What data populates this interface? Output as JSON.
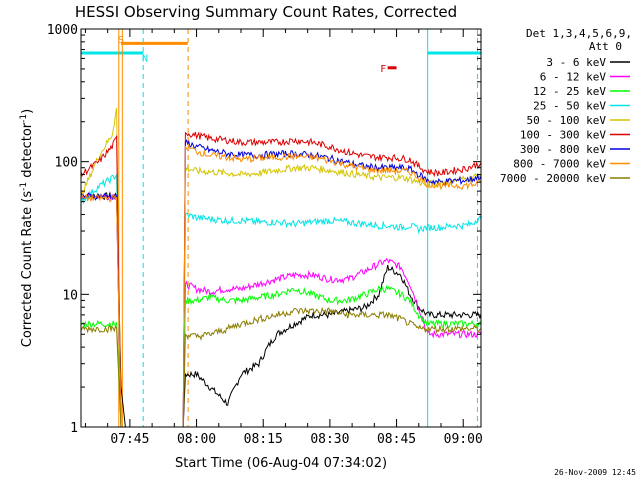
{
  "chart_data": {
    "type": "line",
    "title": "HESSI Observing Summary Count Rates, Corrected",
    "xlabel": "Start Time (06-Aug-04 07:34:02)",
    "ylabel_main": "Corrected Count Rate (s",
    "ylabel_sup1": "-1",
    "ylabel_mid": " detector",
    "ylabel_sup2": "-1",
    "ylabel_end": ")",
    "y_scale": "log",
    "ylim": [
      1,
      1000
    ],
    "xlim_minutes_after_0730": [
      4.0,
      94.0
    ],
    "x_ticks": [
      {
        "label": "07:45",
        "minute": 15
      },
      {
        "label": "08:00",
        "minute": 30
      },
      {
        "label": "08:15",
        "minute": 45
      },
      {
        "label": "08:30",
        "minute": 60
      },
      {
        "label": "08:45",
        "minute": 75
      },
      {
        "label": "09:00",
        "minute": 90
      }
    ],
    "y_ticks": [
      {
        "label": "1",
        "value": 1
      },
      {
        "label": "10",
        "value": 10
      },
      {
        "label": "100",
        "value": 100
      },
      {
        "label": "1000",
        "value": 1000
      }
    ],
    "legend_header": [
      "Det 1,3,4,5,6,9,",
      "Att 0"
    ],
    "legend_placement": "right",
    "series": [
      {
        "name": "3 - 6 keV",
        "color": "#000000",
        "points": [
          [
            4,
            55
          ],
          [
            12,
            55
          ],
          [
            13,
            2
          ],
          [
            14,
            1
          ],
          [
            27,
            1
          ],
          [
            27.5,
            2.5
          ],
          [
            30,
            2.5
          ],
          [
            33,
            2
          ],
          [
            37,
            1.5
          ],
          [
            40,
            2.5
          ],
          [
            44,
            3
          ],
          [
            46,
            4
          ],
          [
            48,
            5
          ],
          [
            52,
            6
          ],
          [
            56,
            7
          ],
          [
            60,
            7
          ],
          [
            64,
            7.5
          ],
          [
            68,
            8
          ],
          [
            71,
            10
          ],
          [
            73,
            16
          ],
          [
            76,
            14
          ],
          [
            78,
            10
          ],
          [
            80,
            8
          ],
          [
            82,
            7
          ],
          [
            85,
            7
          ],
          [
            90,
            7
          ],
          [
            94,
            7
          ]
        ]
      },
      {
        "name": "6 - 12 keV",
        "color": "#ff00ff",
        "points": [
          [
            4,
            55
          ],
          [
            12,
            55
          ],
          [
            13,
            1
          ],
          [
            27,
            1
          ],
          [
            27.5,
            12
          ],
          [
            30,
            11
          ],
          [
            33,
            10.5
          ],
          [
            37,
            11
          ],
          [
            40,
            11
          ],
          [
            44,
            12
          ],
          [
            48,
            13
          ],
          [
            52,
            14
          ],
          [
            56,
            14
          ],
          [
            60,
            13
          ],
          [
            64,
            13
          ],
          [
            68,
            15
          ],
          [
            71,
            17
          ],
          [
            73,
            18
          ],
          [
            76,
            16
          ],
          [
            78,
            12
          ],
          [
            80,
            8
          ],
          [
            82,
            5
          ],
          [
            85,
            5
          ],
          [
            90,
            5
          ],
          [
            94,
            5
          ]
        ]
      },
      {
        "name": "12 - 25 keV",
        "color": "#00ff00",
        "points": [
          [
            4,
            6
          ],
          [
            12,
            6
          ],
          [
            13,
            1
          ],
          [
            27,
            1
          ],
          [
            27.5,
            9
          ],
          [
            30,
            9
          ],
          [
            33,
            9.5
          ],
          [
            37,
            9
          ],
          [
            40,
            9
          ],
          [
            44,
            9.5
          ],
          [
            48,
            10
          ],
          [
            52,
            11
          ],
          [
            56,
            10
          ],
          [
            60,
            9
          ],
          [
            64,
            9
          ],
          [
            68,
            10
          ],
          [
            71,
            11
          ],
          [
            73,
            11
          ],
          [
            76,
            10
          ],
          [
            78,
            9
          ],
          [
            80,
            7
          ],
          [
            82,
            6
          ],
          [
            85,
            6
          ],
          [
            90,
            6
          ],
          [
            94,
            6
          ]
        ]
      },
      {
        "name": "25 - 50 keV",
        "color": "#00e5e5",
        "points": [
          [
            4,
            50
          ],
          [
            8,
            65
          ],
          [
            11,
            75
          ],
          [
            12,
            80
          ],
          [
            13,
            1
          ],
          [
            27,
            1
          ],
          [
            27.5,
            40
          ],
          [
            30,
            38
          ],
          [
            33,
            37
          ],
          [
            37,
            36
          ],
          [
            40,
            36
          ],
          [
            44,
            35
          ],
          [
            48,
            35
          ],
          [
            52,
            34
          ],
          [
            56,
            35
          ],
          [
            60,
            36
          ],
          [
            64,
            35
          ],
          [
            68,
            34
          ],
          [
            71,
            33
          ],
          [
            73,
            33
          ],
          [
            76,
            32
          ],
          [
            78,
            33
          ],
          [
            80,
            31
          ],
          [
            82,
            32
          ],
          [
            85,
            32
          ],
          [
            88,
            33
          ],
          [
            90,
            33
          ],
          [
            92,
            34
          ],
          [
            93.5,
            38
          ],
          [
            94,
            37
          ]
        ]
      },
      {
        "name": "50 - 100 keV",
        "color": "#d4c400",
        "points": [
          [
            4,
            55
          ],
          [
            8,
            110
          ],
          [
            11,
            160
          ],
          [
            12,
            250
          ],
          [
            13,
            1
          ],
          [
            27,
            1
          ],
          [
            27.5,
            90
          ],
          [
            30,
            85
          ],
          [
            33,
            84
          ],
          [
            37,
            82
          ],
          [
            40,
            80
          ],
          [
            44,
            82
          ],
          [
            48,
            86
          ],
          [
            52,
            90
          ],
          [
            56,
            90
          ],
          [
            60,
            86
          ],
          [
            64,
            82
          ],
          [
            68,
            78
          ],
          [
            71,
            76
          ],
          [
            73,
            76
          ],
          [
            76,
            76
          ],
          [
            78,
            74
          ],
          [
            80,
            70
          ],
          [
            82,
            68
          ],
          [
            85,
            70
          ],
          [
            88,
            72
          ],
          [
            90,
            74
          ],
          [
            92,
            76
          ],
          [
            94,
            80
          ]
        ]
      },
      {
        "name": "100 - 300 keV",
        "color": "#dd0000",
        "points": [
          [
            4,
            80
          ],
          [
            8,
            100
          ],
          [
            11,
            130
          ],
          [
            12,
            150
          ],
          [
            13,
            1
          ],
          [
            27,
            1
          ],
          [
            27.5,
            165
          ],
          [
            30,
            158
          ],
          [
            33,
            150
          ],
          [
            37,
            145
          ],
          [
            40,
            140
          ],
          [
            44,
            140
          ],
          [
            48,
            140
          ],
          [
            52,
            145
          ],
          [
            56,
            140
          ],
          [
            60,
            130
          ],
          [
            64,
            118
          ],
          [
            68,
            110
          ],
          [
            71,
            108
          ],
          [
            73,
            108
          ],
          [
            76,
            106
          ],
          [
            78,
            104
          ],
          [
            80,
            92
          ],
          [
            82,
            84
          ],
          [
            85,
            82
          ],
          [
            88,
            86
          ],
          [
            90,
            88
          ],
          [
            92,
            92
          ],
          [
            94,
            98
          ]
        ]
      },
      {
        "name": "300 - 800 keV",
        "color": "#0000dd",
        "points": [
          [
            4,
            55
          ],
          [
            12,
            55
          ],
          [
            13,
            1
          ],
          [
            27,
            1
          ],
          [
            27.5,
            140
          ],
          [
            30,
            130
          ],
          [
            33,
            122
          ],
          [
            37,
            115
          ],
          [
            40,
            112
          ],
          [
            44,
            112
          ],
          [
            48,
            114
          ],
          [
            52,
            115
          ],
          [
            56,
            112
          ],
          [
            60,
            106
          ],
          [
            64,
            98
          ],
          [
            68,
            92
          ],
          [
            71,
            90
          ],
          [
            73,
            90
          ],
          [
            76,
            90
          ],
          [
            78,
            88
          ],
          [
            80,
            80
          ],
          [
            82,
            72
          ],
          [
            85,
            70
          ],
          [
            88,
            72
          ],
          [
            90,
            72
          ],
          [
            92,
            74
          ],
          [
            94,
            78
          ]
        ]
      },
      {
        "name": "800 - 7000 keV",
        "color": "#ff8c00",
        "points": [
          [
            4,
            53
          ],
          [
            12,
            53
          ],
          [
            13,
            1
          ],
          [
            27,
            1
          ],
          [
            27.5,
            130
          ],
          [
            30,
            120
          ],
          [
            33,
            112
          ],
          [
            37,
            108
          ],
          [
            40,
            104
          ],
          [
            44,
            106
          ],
          [
            48,
            108
          ],
          [
            52,
            110
          ],
          [
            56,
            108
          ],
          [
            60,
            102
          ],
          [
            64,
            94
          ],
          [
            68,
            88
          ],
          [
            71,
            86
          ],
          [
            73,
            86
          ],
          [
            76,
            85
          ],
          [
            78,
            84
          ],
          [
            80,
            76
          ],
          [
            82,
            68
          ],
          [
            85,
            66
          ],
          [
            88,
            66
          ],
          [
            90,
            66
          ],
          [
            92,
            67
          ],
          [
            94,
            70
          ]
        ]
      },
      {
        "name": "7000 - 20000 keV",
        "color": "#8b7d00",
        "points": [
          [
            4,
            5.5
          ],
          [
            12,
            5.5
          ],
          [
            13,
            1
          ],
          [
            27,
            1
          ],
          [
            27.5,
            5
          ],
          [
            30,
            4.8
          ],
          [
            33,
            5
          ],
          [
            37,
            5.5
          ],
          [
            40,
            6
          ],
          [
            44,
            6.5
          ],
          [
            48,
            7
          ],
          [
            52,
            7.5
          ],
          [
            56,
            7.5
          ],
          [
            60,
            7.5
          ],
          [
            64,
            7
          ],
          [
            68,
            7
          ],
          [
            71,
            7
          ],
          [
            73,
            7
          ],
          [
            76,
            6.5
          ],
          [
            78,
            6
          ],
          [
            80,
            5.5
          ],
          [
            82,
            5.5
          ],
          [
            85,
            5.5
          ],
          [
            90,
            5.5
          ],
          [
            94,
            5.5
          ]
        ]
      }
    ],
    "orbit_bars": [
      {
        "kind": "cyan",
        "start": 4.0,
        "end": 18.0,
        "y": 660
      },
      {
        "kind": "cyan",
        "start": 82.0,
        "end": 94.0,
        "y": 660
      },
      {
        "kind": "orange",
        "start": 13.0,
        "end": 28.0,
        "y": 780
      },
      {
        "kind": "red",
        "start": 73.0,
        "end": 75.0,
        "y": 510
      }
    ],
    "markers": [
      {
        "kind": "orange-solid",
        "minute": 12.5
      },
      {
        "kind": "orange-solid",
        "minute": 13.3
      },
      {
        "kind": "orange-dash",
        "minute": 28.1
      },
      {
        "kind": "cyan-solid",
        "minute": 82.0
      },
      {
        "kind": "cyan-dash",
        "minute": 18.0
      },
      {
        "kind": "cyan-dash",
        "minute": 93.2
      }
    ],
    "flags": [
      {
        "label": "S",
        "minute": 13.0,
        "value": 840,
        "color": "#ff8c00"
      },
      {
        "label": "N",
        "minute": 18.4,
        "value": 610,
        "color": "#00e5e5"
      },
      {
        "label": "F",
        "minute": 72.0,
        "value": 510,
        "color": "#dd0000"
      }
    ],
    "footer_timestamp": "26-Nov-2009 12:45"
  }
}
